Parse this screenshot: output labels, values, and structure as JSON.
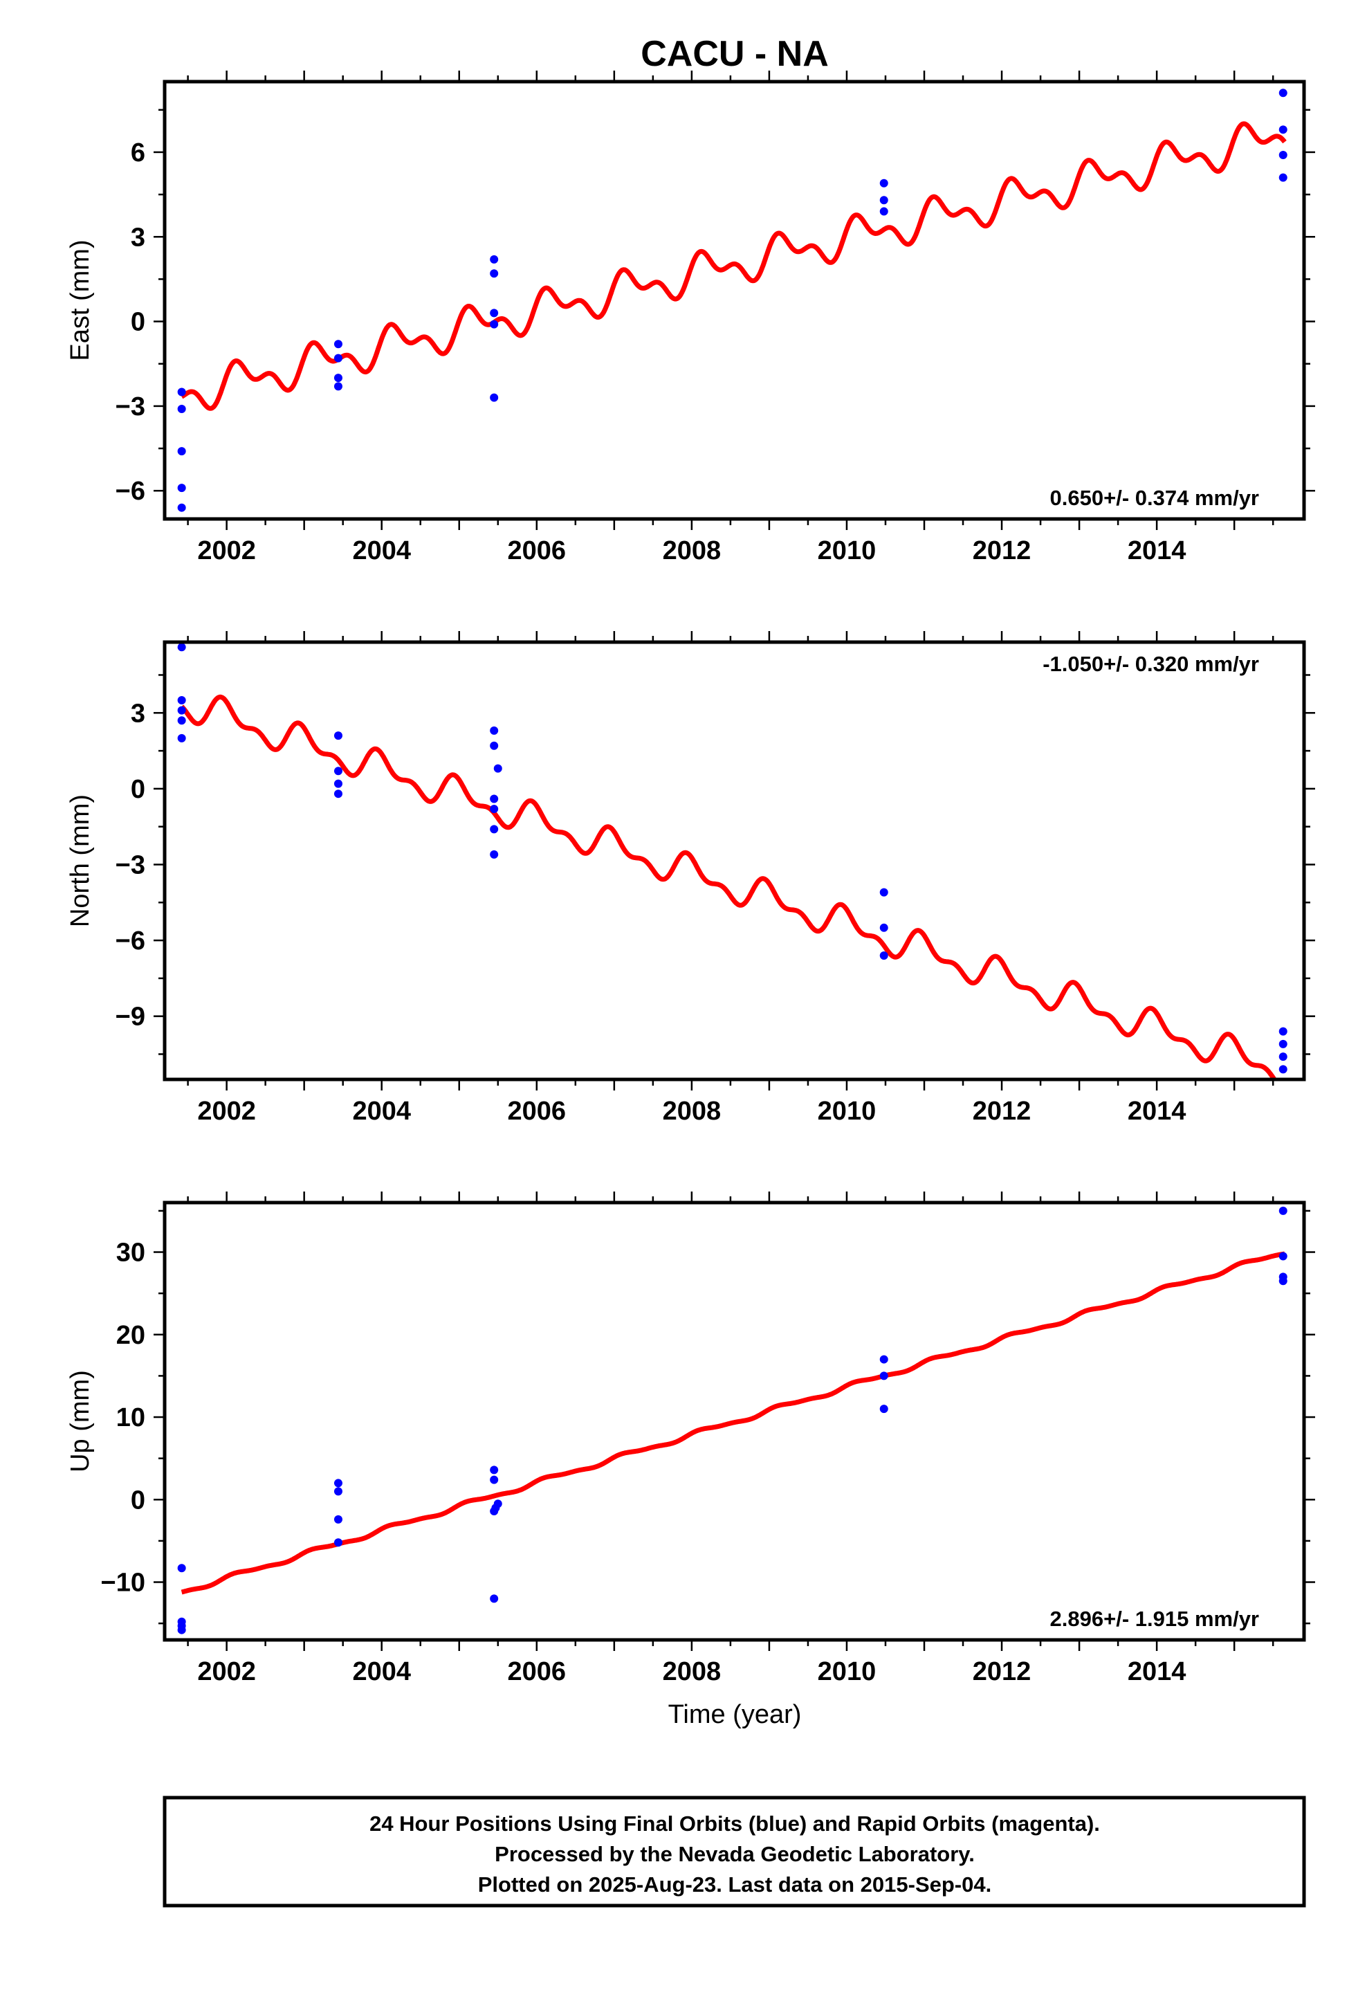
{
  "title": "CACU - NA",
  "xlabel": "Time (year)",
  "caption": [
    "24 Hour Positions Using Final Orbits (blue) and Rapid Orbits (magenta).",
    "Processed by the Nevada Geodetic Laboratory.",
    "Plotted on 2025-Aug-23. Last data on 2015-Sep-04."
  ],
  "colors": {
    "data_points": "#0000ff",
    "model_line": "#ff0000",
    "frame": "#000000"
  },
  "chart_data": [
    {
      "type": "scatter",
      "ylabel": "East (mm)",
      "rate_label": "0.650+/- 0.374 mm/yr",
      "xlim": [
        2001.2,
        2015.9
      ],
      "ylim": [
        -7.0,
        8.5
      ],
      "yticks": [
        -6,
        -3,
        0,
        3,
        6
      ],
      "ytick_labels": [
        "−6",
        "−3",
        "0",
        "3",
        "6"
      ],
      "xticks": [
        2002,
        2004,
        2006,
        2008,
        2010,
        2012,
        2014
      ],
      "xtick_labels": [
        "2002",
        "2004",
        "2006",
        "2008",
        "2010",
        "2012",
        "2014"
      ],
      "model": {
        "start": [
          2001.42,
          -2.6
        ],
        "end": [
          2015.65,
          6.6
        ],
        "annual_amp": 0.5,
        "semi_amp": 0.35,
        "phase": 0.3
      },
      "series": [
        {
          "points": [
            [
              2001.42,
              -2.5
            ],
            [
              2001.42,
              -3.1
            ],
            [
              2001.42,
              -4.6
            ],
            [
              2001.42,
              -5.9
            ],
            [
              2001.42,
              -6.6
            ],
            [
              2003.44,
              -0.8
            ],
            [
              2003.44,
              -1.3
            ],
            [
              2003.44,
              -2.0
            ],
            [
              2003.44,
              -2.3
            ],
            [
              2005.45,
              2.2
            ],
            [
              2005.45,
              1.7
            ],
            [
              2005.45,
              0.3
            ],
            [
              2005.45,
              -0.1
            ],
            [
              2005.45,
              -2.7
            ],
            [
              2010.48,
              4.9
            ],
            [
              2010.48,
              4.3
            ],
            [
              2010.48,
              3.9
            ],
            [
              2015.63,
              8.1
            ],
            [
              2015.63,
              6.8
            ],
            [
              2015.63,
              5.9
            ],
            [
              2015.63,
              5.1
            ]
          ]
        }
      ]
    },
    {
      "type": "scatter",
      "ylabel": "North (mm)",
      "rate_label": "-1.050+/- 0.320 mm/yr",
      "xlim": [
        2001.2,
        2015.9
      ],
      "ylim": [
        -11.5,
        5.8
      ],
      "yticks": [
        -9,
        -6,
        -3,
        0,
        3
      ],
      "ytick_labels": [
        "−9",
        "−6",
        "−3",
        "0",
        "3"
      ],
      "xticks": [
        2002,
        2004,
        2006,
        2008,
        2010,
        2012,
        2014
      ],
      "xtick_labels": [
        "2002",
        "2004",
        "2006",
        "2008",
        "2010",
        "2012",
        "2014"
      ],
      "model": {
        "start": [
          2001.42,
          3.4
        ],
        "end": [
          2015.65,
          -11.2
        ],
        "annual_amp": 0.5,
        "semi_amp": 0.3,
        "phase": 1.6
      },
      "series": [
        {
          "points": [
            [
              2001.42,
              5.6
            ],
            [
              2001.42,
              3.5
            ],
            [
              2001.42,
              3.1
            ],
            [
              2001.42,
              2.7
            ],
            [
              2001.42,
              2.0
            ],
            [
              2003.44,
              2.1
            ],
            [
              2003.44,
              0.7
            ],
            [
              2003.44,
              0.2
            ],
            [
              2003.44,
              -0.2
            ],
            [
              2005.45,
              2.3
            ],
            [
              2005.45,
              1.7
            ],
            [
              2005.5,
              0.8
            ],
            [
              2005.45,
              -0.4
            ],
            [
              2005.45,
              -0.8
            ],
            [
              2005.45,
              -1.6
            ],
            [
              2005.45,
              -2.6
            ],
            [
              2010.48,
              -4.1
            ],
            [
              2010.48,
              -5.5
            ],
            [
              2010.48,
              -6.6
            ],
            [
              2015.63,
              -9.6
            ],
            [
              2015.63,
              -10.1
            ],
            [
              2015.63,
              -10.6
            ],
            [
              2015.63,
              -11.1
            ]
          ]
        }
      ]
    },
    {
      "type": "scatter",
      "ylabel": "Up (mm)",
      "rate_label": "2.896+/- 1.915 mm/yr",
      "xlim": [
        2001.2,
        2015.9
      ],
      "ylim": [
        -17.0,
        36.0
      ],
      "yticks": [
        -10,
        0,
        10,
        20,
        30
      ],
      "ytick_labels": [
        "−10",
        "0",
        "10",
        "20",
        "30"
      ],
      "xticks": [
        2002,
        2004,
        2006,
        2008,
        2010,
        2012,
        2014
      ],
      "xtick_labels": [
        "2002",
        "2004",
        "2006",
        "2008",
        "2010",
        "2012",
        "2014"
      ],
      "model": {
        "start": [
          2001.42,
          -11.2
        ],
        "end": [
          2015.65,
          30.0
        ],
        "annual_amp": 0.25,
        "semi_amp": 0.1,
        "phase": 0.5
      },
      "series": [
        {
          "points": [
            [
              2001.42,
              -8.3
            ],
            [
              2001.42,
              -14.8
            ],
            [
              2001.42,
              -15.3
            ],
            [
              2001.42,
              -15.8
            ],
            [
              2003.44,
              2.0
            ],
            [
              2003.44,
              1.0
            ],
            [
              2003.44,
              -2.4
            ],
            [
              2003.44,
              -5.2
            ],
            [
              2005.45,
              3.6
            ],
            [
              2005.45,
              2.4
            ],
            [
              2005.5,
              -0.5
            ],
            [
              2005.47,
              -1.0
            ],
            [
              2005.45,
              -1.4
            ],
            [
              2005.45,
              -12.0
            ],
            [
              2010.48,
              17.0
            ],
            [
              2010.48,
              15.0
            ],
            [
              2010.48,
              11.0
            ],
            [
              2015.63,
              35.0
            ],
            [
              2015.63,
              29.5
            ],
            [
              2015.63,
              27.0
            ],
            [
              2015.63,
              26.5
            ]
          ]
        }
      ]
    }
  ]
}
